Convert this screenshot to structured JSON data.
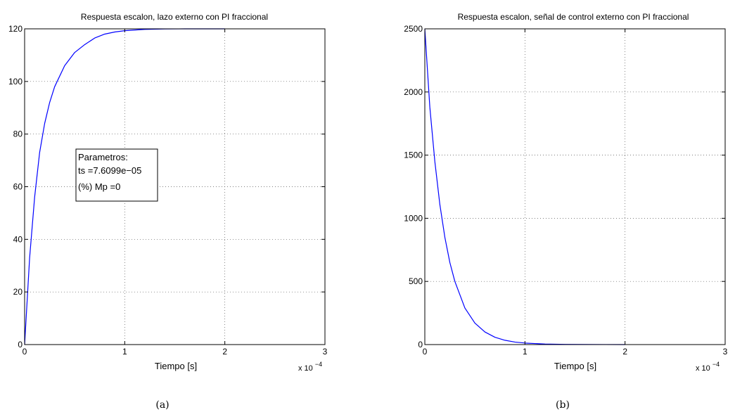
{
  "chart_data": [
    {
      "type": "line",
      "title": "Respuesta escalon, lazo externo con PI fraccional",
      "xlabel": "Tiempo  [s]",
      "ylabel": "",
      "x_multiplier_label": "x 10",
      "x_multiplier_exp": "−4",
      "xlim": [
        0,
        3
      ],
      "ylim": [
        0,
        120
      ],
      "xticks": [
        "0",
        "1",
        "2",
        "3"
      ],
      "yticks": [
        "0",
        "20",
        "40",
        "60",
        "80",
        "100",
        "120"
      ],
      "grid": true,
      "line_color": "#0000ff",
      "series": [
        {
          "x": [
            0,
            0.05,
            0.1,
            0.15,
            0.2,
            0.25,
            0.3,
            0.4,
            0.5,
            0.6,
            0.7,
            0.8,
            0.9,
            1.0,
            1.2,
            1.4,
            1.6,
            1.8,
            2.0
          ],
          "values": [
            0,
            33,
            56,
            73,
            84,
            92,
            98,
            106,
            111,
            114,
            116.5,
            118,
            118.8,
            119.3,
            119.8,
            119.95,
            120,
            120,
            120
          ]
        }
      ],
      "annotation": {
        "lines": [
          "Parametros:",
          "ts =7.6099e−05",
          "(%) Mp =0"
        ]
      },
      "caption": "(a)"
    },
    {
      "type": "line",
      "title": "Respuesta escalon, señal de control externo con PI fraccional",
      "xlabel": "Tiempo  [s]",
      "ylabel": "",
      "x_multiplier_label": "x 10",
      "x_multiplier_exp": "−4",
      "xlim": [
        0,
        3
      ],
      "ylim": [
        0,
        2500
      ],
      "xticks": [
        "0",
        "1",
        "2",
        "3"
      ],
      "yticks": [
        "0",
        "500",
        "1000",
        "1500",
        "2000",
        "2500"
      ],
      "grid": true,
      "line_color": "#0000ff",
      "series": [
        {
          "x": [
            0,
            0.05,
            0.1,
            0.15,
            0.2,
            0.25,
            0.3,
            0.4,
            0.5,
            0.6,
            0.7,
            0.8,
            0.9,
            1.0,
            1.2,
            1.4,
            1.6,
            1.8,
            2.0
          ],
          "values": [
            2500,
            1880,
            1450,
            1110,
            850,
            650,
            500,
            290,
            170,
            100,
            58,
            34,
            20,
            12,
            4,
            1.5,
            0.5,
            0.2,
            0
          ]
        }
      ],
      "caption": "(b)"
    }
  ]
}
